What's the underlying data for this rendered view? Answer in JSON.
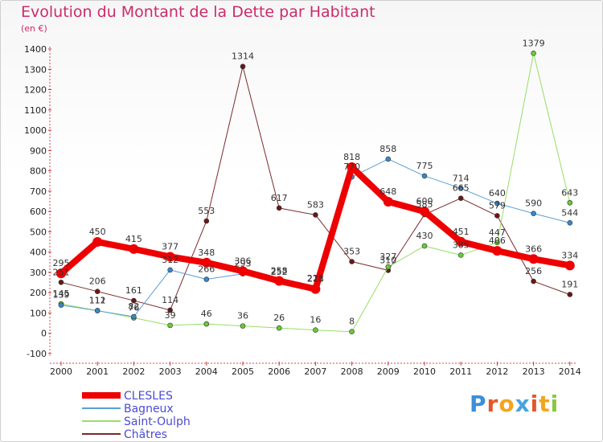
{
  "title": "Evolution du Montant de la Dette par Habitant",
  "subtitle": "(en €)",
  "logo": {
    "text": "Proxiti",
    "letter_colors": [
      "#3a8fd8",
      "#e5572b",
      "#f2a51f",
      "#4aa3df",
      "#e5572b",
      "#f2a51f",
      "#8bc63f"
    ]
  },
  "chart_data": {
    "type": "line",
    "title": "Evolution du Montant de la Dette par Habitant",
    "subtitle": "(en €)",
    "xlabel": "",
    "ylabel": "",
    "ylim": [
      -100,
      1400
    ],
    "yticks": [
      -100,
      0,
      100,
      200,
      300,
      400,
      500,
      600,
      700,
      800,
      900,
      1000,
      1100,
      1200,
      1300,
      1400
    ],
    "grid": false,
    "legend": "bottom-left",
    "x": [
      "2000",
      "2001",
      "2002",
      "2003",
      "2004",
      "2005",
      "2006",
      "2007",
      "2008",
      "2009",
      "2010",
      "2011",
      "2012",
      "2013",
      "2014"
    ],
    "series": [
      {
        "name": "Châtres",
        "color": "#7a2a2a",
        "marker": "#6b1717",
        "width": 1,
        "values": [
          251,
          206,
          161,
          114,
          553,
          1314,
          617,
          583,
          353,
          310,
          585,
          665,
          579,
          256,
          191
        ],
        "labels": [
          "251",
          "206",
          "161",
          "114",
          "553",
          "1314",
          "617",
          "583",
          "353",
          "310",
          "585",
          "665",
          "579",
          "256",
          "191"
        ]
      },
      {
        "name": "Saint-Oulph",
        "color": "#99dd66",
        "marker": "#66cc33",
        "width": 1,
        "values": [
          145,
          112,
          76,
          39,
          46,
          36,
          26,
          16,
          8,
          327,
          430,
          385,
          447,
          1379,
          643
        ],
        "labels": [
          "145",
          "112",
          "76",
          "39",
          "46",
          "36",
          "26",
          "16",
          "8",
          "327",
          "430",
          "385",
          "447",
          "1379",
          "643"
        ]
      },
      {
        "name": "Bagneux",
        "color": "#5b9fd6",
        "marker": "#3a86c8",
        "width": 1,
        "values": [
          139,
          111,
          82,
          312,
          266,
          293,
          252,
          221,
          770,
          858,
          775,
          714,
          640,
          590,
          544
        ],
        "labels": [
          "139",
          "111",
          "82",
          "312",
          "266",
          "293",
          "252",
          "221",
          "770",
          "858",
          "775",
          "714",
          "640",
          "590",
          "544"
        ]
      },
      {
        "name": "CLESLES",
        "color": "#ee0000",
        "marker": "#ee0000",
        "width": 8,
        "values": [
          295,
          450,
          415,
          377,
          348,
          306,
          258,
          218,
          818,
          648,
          600,
          451,
          406,
          366,
          334
        ],
        "labels": [
          "295",
          "450",
          "415",
          "377",
          "348",
          "306",
          "258",
          "218",
          "818",
          "648",
          "600",
          "451",
          "406",
          "366",
          "334"
        ]
      }
    ],
    "legend_entries": [
      {
        "name": "CLESLES",
        "color": "#ee0000",
        "width": 8
      },
      {
        "name": "Bagneux",
        "color": "#5b9fd6",
        "width": 2
      },
      {
        "name": "Saint-Oulph",
        "color": "#99dd66",
        "width": 2
      },
      {
        "name": "Châtres",
        "color": "#7a2a2a",
        "width": 2
      }
    ]
  }
}
